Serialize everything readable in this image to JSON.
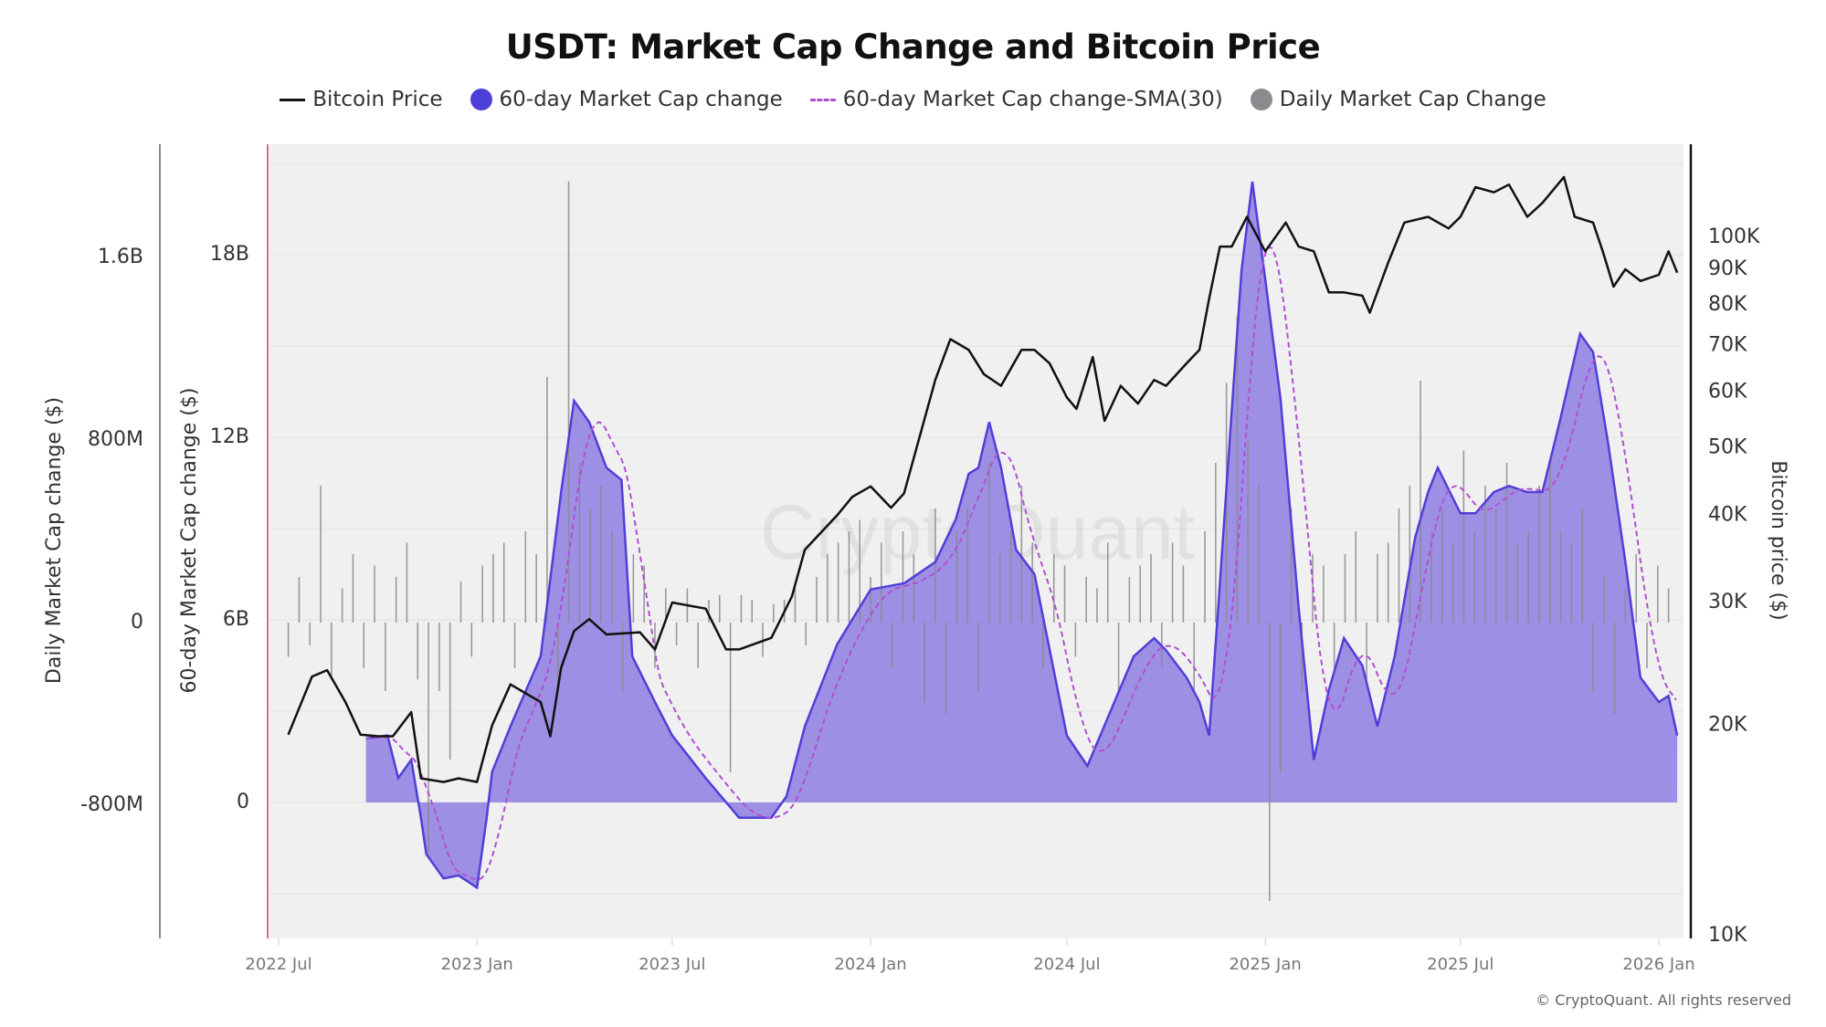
{
  "chart_data": {
    "type": "area+line+bar",
    "title": "USDT: Market Cap Change and Bitcoin Price",
    "legend": {
      "placement": "top",
      "items": [
        {
          "name": "Bitcoin Price",
          "color": "#111111",
          "style": "line"
        },
        {
          "name": "60-day Market Cap change",
          "color": "#4f3fd9",
          "style": "area"
        },
        {
          "name": "60-day Market Cap change-SMA(30)",
          "color": "#b14fd0",
          "style": "dashed"
        },
        {
          "name": "Daily Market Cap Change",
          "color": "#8a8a8f",
          "style": "bar"
        }
      ]
    },
    "axes": {
      "left_outer": {
        "label": "Daily Market Cap change ($)",
        "ticks": [
          "1.6B",
          "800M",
          "0",
          "-800M"
        ],
        "tick_values": [
          1600,
          800,
          0,
          -800
        ],
        "unit": "M"
      },
      "left_inner": {
        "label": "60-day Market Cap change ($)",
        "ticks": [
          "18B",
          "12B",
          "6B",
          "0"
        ],
        "tick_values": [
          18,
          12,
          6,
          0
        ],
        "unit": "B"
      },
      "right": {
        "label": "Bitcoin price ($)",
        "scale": "log",
        "ticks": [
          "100K",
          "90K",
          "80K",
          "70K",
          "60K",
          "50K",
          "40K",
          "30K",
          "20K",
          "10K"
        ],
        "tick_values": [
          100000,
          90000,
          80000,
          70000,
          60000,
          50000,
          40000,
          30000,
          20000,
          10000
        ]
      },
      "x": {
        "ticks": [
          "2022 Jul",
          "2023 Jan",
          "2023 Jul",
          "2024 Jan",
          "2024 Jul",
          "2025 Jan",
          "2025 Jul",
          "2026 Jan"
        ],
        "tick_dates": [
          "2022-07-01",
          "2023-01-01",
          "2023-07-01",
          "2024-01-01",
          "2024-07-01",
          "2025-01-01",
          "2025-07-01",
          "2026-01-01"
        ]
      }
    },
    "grid": true,
    "sma_window_days": 30,
    "mcap_60d_B": [
      [
        "2022-09-20",
        2.1
      ],
      [
        "2022-10-10",
        2.2
      ],
      [
        "2022-10-20",
        0.8
      ],
      [
        "2022-11-01",
        1.4
      ],
      [
        "2022-11-10",
        -0.5
      ],
      [
        "2022-11-15",
        -1.7
      ],
      [
        "2022-12-01",
        -2.5
      ],
      [
        "2022-12-15",
        -2.4
      ],
      [
        "2023-01-01",
        -2.8
      ],
      [
        "2023-01-10",
        -0.5
      ],
      [
        "2023-01-15",
        1.0
      ],
      [
        "2023-02-01",
        2.5
      ],
      [
        "2023-03-01",
        4.8
      ],
      [
        "2023-03-20",
        10.2
      ],
      [
        "2023-04-01",
        13.2
      ],
      [
        "2023-04-15",
        12.5
      ],
      [
        "2023-05-01",
        11.0
      ],
      [
        "2023-05-15",
        10.6
      ],
      [
        "2023-05-25",
        4.8
      ],
      [
        "2023-06-15",
        3.3
      ],
      [
        "2023-07-01",
        2.2
      ],
      [
        "2023-08-01",
        0.8
      ],
      [
        "2023-09-01",
        -0.5
      ],
      [
        "2023-10-01",
        -0.5
      ],
      [
        "2023-10-15",
        0.2
      ],
      [
        "2023-11-01",
        2.5
      ],
      [
        "2023-12-01",
        5.2
      ],
      [
        "2024-01-01",
        7.0
      ],
      [
        "2024-02-01",
        7.2
      ],
      [
        "2024-03-01",
        7.9
      ],
      [
        "2024-03-20",
        9.3
      ],
      [
        "2024-04-01",
        10.8
      ],
      [
        "2024-04-10",
        11.0
      ],
      [
        "2024-04-20",
        12.5
      ],
      [
        "2024-05-01",
        11.0
      ],
      [
        "2024-05-15",
        8.3
      ],
      [
        "2024-06-01",
        7.5
      ],
      [
        "2024-07-01",
        2.2
      ],
      [
        "2024-07-20",
        1.2
      ],
      [
        "2024-08-01",
        2.2
      ],
      [
        "2024-09-01",
        4.8
      ],
      [
        "2024-09-20",
        5.4
      ],
      [
        "2024-10-01",
        5.0
      ],
      [
        "2024-10-20",
        4.1
      ],
      [
        "2024-11-01",
        3.3
      ],
      [
        "2024-11-10",
        2.2
      ],
      [
        "2024-11-20",
        7.2
      ],
      [
        "2024-12-01",
        12.9
      ],
      [
        "2024-12-10",
        17.5
      ],
      [
        "2024-12-20",
        20.4
      ],
      [
        "2025-01-01",
        17.2
      ],
      [
        "2025-01-15",
        13.3
      ],
      [
        "2025-02-01",
        6.4
      ],
      [
        "2025-02-15",
        1.4
      ],
      [
        "2025-03-01",
        3.7
      ],
      [
        "2025-03-15",
        5.4
      ],
      [
        "2025-04-01",
        4.5
      ],
      [
        "2025-04-15",
        2.5
      ],
      [
        "2025-05-01",
        4.8
      ],
      [
        "2025-05-20",
        8.7
      ],
      [
        "2025-06-01",
        10.2
      ],
      [
        "2025-06-10",
        11.0
      ],
      [
        "2025-07-01",
        9.5
      ],
      [
        "2025-07-15",
        9.5
      ],
      [
        "2025-08-01",
        10.2
      ],
      [
        "2025-08-15",
        10.4
      ],
      [
        "2025-09-01",
        10.2
      ],
      [
        "2025-09-15",
        10.2
      ],
      [
        "2025-10-01",
        12.5
      ],
      [
        "2025-10-20",
        15.4
      ],
      [
        "2025-11-01",
        14.8
      ],
      [
        "2025-11-15",
        11.8
      ],
      [
        "2025-12-01",
        7.9
      ],
      [
        "2025-12-15",
        4.1
      ],
      [
        "2026-01-01",
        3.3
      ],
      [
        "2026-01-10",
        3.5
      ],
      [
        "2026-01-18",
        2.2
      ]
    ],
    "bitcoin_price_usd": [
      [
        "2022-07-10",
        19400
      ],
      [
        "2022-08-01",
        23500
      ],
      [
        "2022-08-15",
        24000
      ],
      [
        "2022-09-01",
        21600
      ],
      [
        "2022-09-15",
        19400
      ],
      [
        "2022-10-01",
        19300
      ],
      [
        "2022-10-15",
        19300
      ],
      [
        "2022-11-01",
        20900
      ],
      [
        "2022-11-10",
        16800
      ],
      [
        "2022-12-01",
        16600
      ],
      [
        "2022-12-15",
        16800
      ],
      [
        "2023-01-01",
        16600
      ],
      [
        "2023-01-15",
        20000
      ],
      [
        "2023-02-01",
        22900
      ],
      [
        "2023-03-01",
        21600
      ],
      [
        "2023-03-10",
        19300
      ],
      [
        "2023-03-20",
        24200
      ],
      [
        "2023-04-01",
        27300
      ],
      [
        "2023-04-15",
        28400
      ],
      [
        "2023-05-01",
        27000
      ],
      [
        "2023-06-01",
        27200
      ],
      [
        "2023-06-15",
        25700
      ],
      [
        "2023-07-01",
        30000
      ],
      [
        "2023-08-01",
        29400
      ],
      [
        "2023-08-20",
        25700
      ],
      [
        "2023-09-01",
        25700
      ],
      [
        "2023-10-01",
        26700
      ],
      [
        "2023-10-20",
        30600
      ],
      [
        "2023-11-01",
        35700
      ],
      [
        "2023-12-01",
        40000
      ],
      [
        "2023-12-15",
        42500
      ],
      [
        "2024-01-01",
        44000
      ],
      [
        "2024-01-20",
        41000
      ],
      [
        "2024-02-01",
        43000
      ],
      [
        "2024-02-15",
        51500
      ],
      [
        "2024-03-01",
        62500
      ],
      [
        "2024-03-15",
        71500
      ],
      [
        "2024-04-01",
        69000
      ],
      [
        "2024-04-15",
        63700
      ],
      [
        "2024-05-01",
        61300
      ],
      [
        "2024-05-20",
        69000
      ],
      [
        "2024-06-01",
        69000
      ],
      [
        "2024-06-15",
        66000
      ],
      [
        "2024-07-01",
        59000
      ],
      [
        "2024-07-10",
        56800
      ],
      [
        "2024-07-25",
        67400
      ],
      [
        "2024-08-05",
        54600
      ],
      [
        "2024-08-20",
        61300
      ],
      [
        "2024-09-05",
        57800
      ],
      [
        "2024-09-20",
        62500
      ],
      [
        "2024-10-01",
        61300
      ],
      [
        "2024-10-20",
        66000
      ],
      [
        "2024-11-01",
        69000
      ],
      [
        "2024-11-10",
        81700
      ],
      [
        "2024-11-20",
        97000
      ],
      [
        "2024-12-01",
        97000
      ],
      [
        "2024-12-15",
        107000
      ],
      [
        "2025-01-01",
        95500
      ],
      [
        "2025-01-20",
        105000
      ],
      [
        "2025-02-01",
        97000
      ],
      [
        "2025-02-15",
        95500
      ],
      [
        "2025-03-01",
        83400
      ],
      [
        "2025-03-15",
        83400
      ],
      [
        "2025-04-01",
        82500
      ],
      [
        "2025-04-08",
        78000
      ],
      [
        "2025-04-25",
        92000
      ],
      [
        "2025-05-10",
        105000
      ],
      [
        "2025-06-01",
        107000
      ],
      [
        "2025-06-20",
        103000
      ],
      [
        "2025-07-01",
        107000
      ],
      [
        "2025-07-15",
        118000
      ],
      [
        "2025-08-01",
        116000
      ],
      [
        "2025-08-15",
        119000
      ],
      [
        "2025-09-01",
        107000
      ],
      [
        "2025-09-15",
        112000
      ],
      [
        "2025-10-05",
        122000
      ],
      [
        "2025-10-15",
        107000
      ],
      [
        "2025-11-01",
        105000
      ],
      [
        "2025-11-10",
        95500
      ],
      [
        "2025-11-20",
        85000
      ],
      [
        "2025-12-01",
        90000
      ],
      [
        "2025-12-15",
        86600
      ],
      [
        "2026-01-01",
        88400
      ],
      [
        "2026-01-10",
        95500
      ],
      [
        "2026-01-18",
        89000
      ]
    ],
    "daily_mcap_change_M": {
      "start": "2022-07-10",
      "interval_days": 10,
      "values": [
        -150,
        200,
        -100,
        600,
        -250,
        150,
        300,
        -200,
        250,
        -300,
        200,
        350,
        -250,
        -1015,
        -300,
        -600,
        180,
        -150,
        250,
        300,
        350,
        -200,
        400,
        300,
        1077,
        -300,
        1933,
        700,
        500,
        600,
        400,
        -300,
        300,
        250,
        -200,
        150,
        -100,
        150,
        -200,
        100,
        120,
        -656,
        120,
        100,
        -150,
        80,
        100,
        150,
        -100,
        200,
        300,
        350,
        400,
        450,
        200,
        350,
        -200,
        400,
        300,
        -350,
        500,
        -400,
        400,
        500,
        -300,
        700,
        300,
        400,
        600,
        350,
        -200,
        300,
        250,
        -150,
        200,
        150,
        350,
        -300,
        200,
        250,
        300,
        -200,
        350,
        250,
        -300,
        400,
        700,
        1050,
        1343,
        800,
        600,
        -1220,
        -656,
        500,
        -300,
        300,
        250,
        -200,
        300,
        400,
        -250,
        300,
        350,
        500,
        600,
        1060,
        400,
        500,
        350,
        754,
        400,
        600,
        500,
        700,
        350,
        400,
        600,
        700,
        400,
        350,
        500,
        -300,
        200,
        -400,
        150,
        300,
        -200,
        250,
        150
      ]
    }
  },
  "watermark": "CryptoQuant",
  "copyright": "© CryptoQuant. All rights reserved"
}
